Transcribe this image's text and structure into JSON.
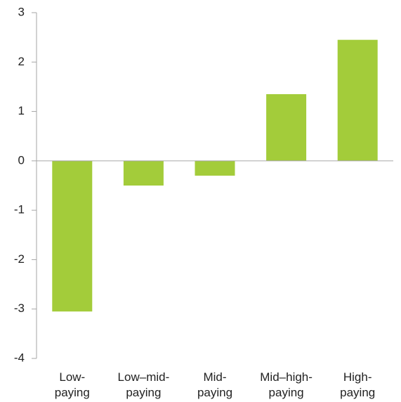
{
  "chart_data": {
    "type": "bar",
    "title": "",
    "xlabel": "",
    "ylabel": "",
    "categories": [
      [
        "Low-",
        "paying"
      ],
      [
        "Low–mid-",
        "paying"
      ],
      [
        "Mid-",
        "paying"
      ],
      [
        "Mid–high-",
        "paying"
      ],
      [
        "High-",
        "paying"
      ]
    ],
    "values": [
      -3.05,
      -0.5,
      -0.3,
      1.35,
      2.45
    ],
    "ylim": [
      -4,
      3
    ],
    "yticks": [
      "3",
      "2",
      "1",
      "0",
      "-1",
      "-2",
      "-3",
      "-4"
    ],
    "yticks_values": [
      3,
      2,
      1,
      0,
      -1,
      -2,
      -3,
      -4
    ],
    "grid": false,
    "colors": {
      "bar": "#a3cc3a",
      "axis": "#a6a6a6"
    }
  }
}
